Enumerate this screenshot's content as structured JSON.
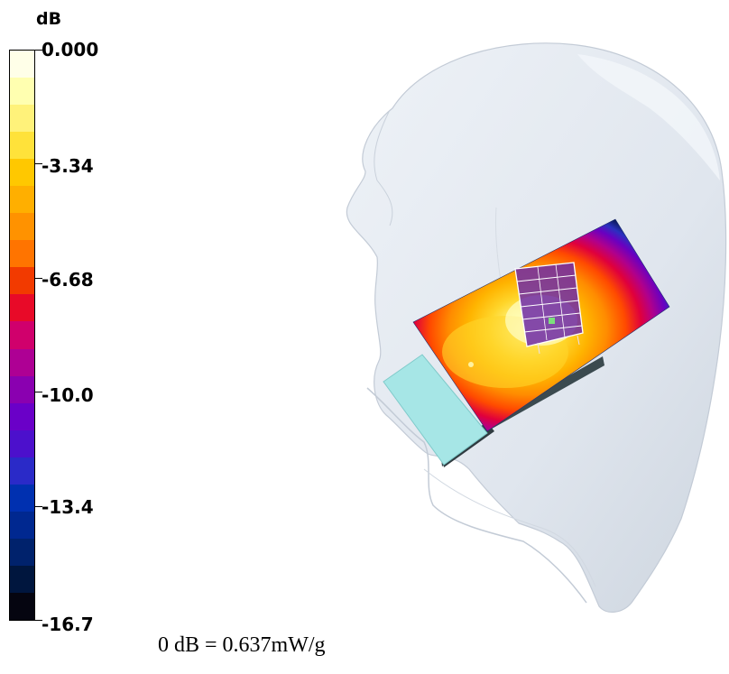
{
  "colorbar": {
    "unit": "dB",
    "ticks": [
      "0.000",
      "-3.34",
      "-6.68",
      "-10.0",
      "-13.4",
      "-16.7"
    ],
    "bands": [
      "#FFFFE8",
      "#FFFFB0",
      "#FFF27A",
      "#FFE23A",
      "#FFC800",
      "#FFAF00",
      "#FF9200",
      "#FF7400",
      "#F23A00",
      "#E80A28",
      "#D0006C",
      "#AE0094",
      "#8A00B0",
      "#6A00C8",
      "#4C10CC",
      "#2A2AC8",
      "#0030B0",
      "#002890",
      "#00226C",
      "#00163E",
      "#050510"
    ]
  },
  "caption": "0 dB = 0.637mW/g",
  "colors": {
    "head_fill": "#E2E8F0",
    "head_shadow": "#C6CFDB",
    "phone_face": "#A6E6E6",
    "phone_side": "#3B4A4F"
  }
}
